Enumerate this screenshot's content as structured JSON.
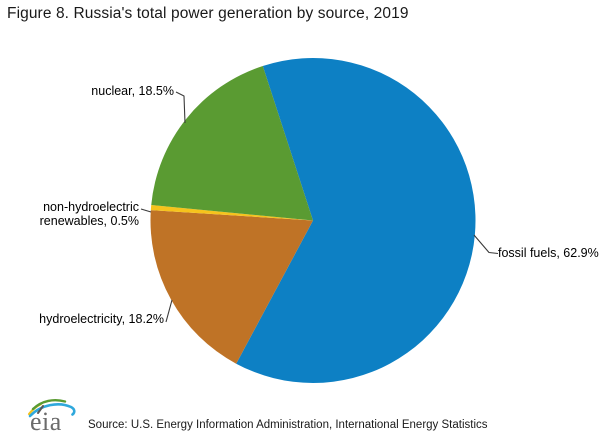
{
  "title": "Figure 8. Russia's total power generation by source, 2019",
  "chart_data": {
    "type": "pie",
    "title": "Figure 8. Russia's total power generation by source, 2019",
    "unit": "percent of total power generation",
    "start_angle_deg": -18,
    "categories": [
      "fossil fuels",
      "hydroelectricity",
      "non-hydroelectric renewables",
      "nuclear"
    ],
    "values": [
      62.9,
      18.2,
      0.5,
      18.5
    ],
    "slices": [
      {
        "id": "fossil-fuels",
        "label": "fossil fuels",
        "value_pct": 62.9,
        "color": "#0d80c4"
      },
      {
        "id": "hydroelectricity",
        "label": "hydroelectricity",
        "value_pct": 18.2,
        "color": "#bf7326"
      },
      {
        "id": "non-hydroelectric-renewables",
        "label": "non-hydroelectric renewables",
        "value_pct": 0.5,
        "color": "#f6c31c"
      },
      {
        "id": "nuclear",
        "label": "nuclear",
        "value_pct": 18.5,
        "color": "#5a9b32"
      }
    ],
    "legend": "none",
    "labels_style": "callouts with leader lines"
  },
  "callouts": {
    "nuclear": "nuclear, 18.5%",
    "non_hydro_line1": "non-hydroelectric",
    "non_hydro_line2": "renewables, 0.5%",
    "hydro": "hydroelectricity, 18.2%",
    "fossil": "fossil fuels, 62.9%"
  },
  "footer": {
    "logo_text": "eia",
    "source": "Source: U.S. Energy Information Administration, International Energy Statistics"
  },
  "colors": {
    "fossil_fuels": "#0d80c4",
    "hydroelectricity": "#bf7326",
    "non_hydroelectric_renewables": "#f6c31c",
    "nuclear": "#5a9b32",
    "leader_line": "#3a3a3a",
    "logo_gray": "#6b6b6b",
    "logo_green": "#5a9b32",
    "logo_blue": "#2fa8dc",
    "logo_yellow": "#f6c31c"
  }
}
